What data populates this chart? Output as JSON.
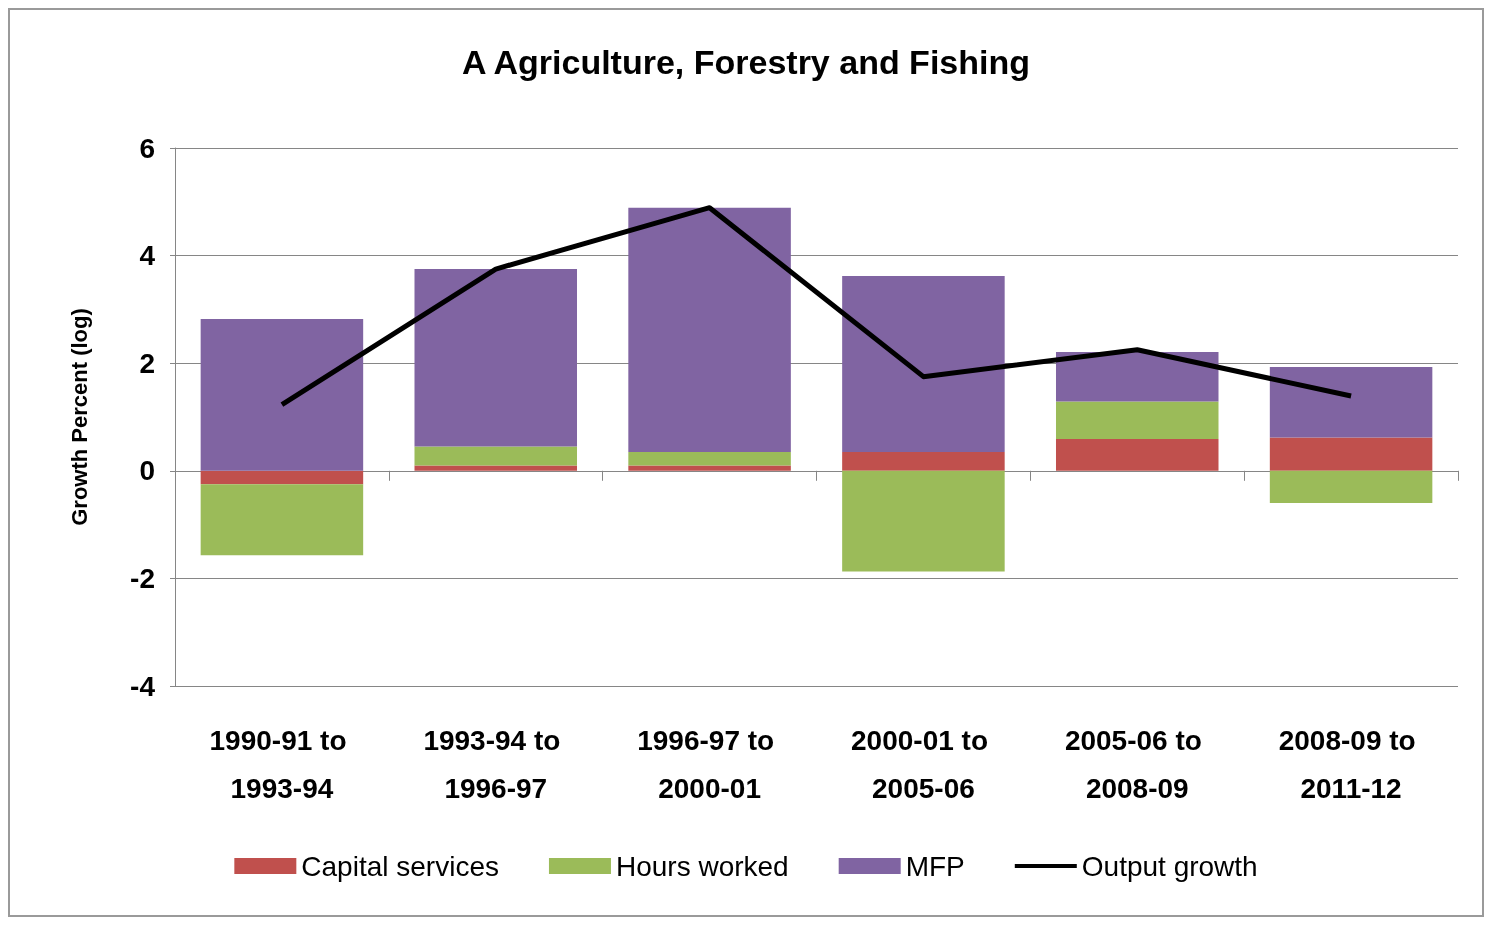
{
  "chart_data": {
    "type": "bar",
    "title": "A Agriculture, Forestry and Fishing",
    "ylabel": "Growth Percent (log)",
    "categories": [
      "1990-91 to 1993-94",
      "1993-94 to 1996-97",
      "1996-97 to 2000-01",
      "2000-01 to 2005-06",
      "2005-06 to 2008-09",
      "2008-09 to 2011-12"
    ],
    "stacked": true,
    "series": [
      {
        "name": "Capital services",
        "color": "#c0504d",
        "values": [
          -0.25,
          0.1,
          0.1,
          0.35,
          0.59,
          0.62
        ]
      },
      {
        "name": "Hours worked",
        "color": "#9bbb59",
        "values": [
          -1.32,
          0.35,
          0.25,
          -1.87,
          0.7,
          -0.6
        ]
      },
      {
        "name": "MFP",
        "color": "#8064a2",
        "values": [
          2.82,
          3.3,
          4.54,
          3.27,
          0.92,
          1.31
        ]
      },
      {
        "name": "Output growth",
        "type": "line",
        "color": "#000000",
        "values": [
          1.23,
          3.75,
          4.89,
          1.75,
          2.25,
          1.39
        ]
      }
    ],
    "ylim": [
      -4,
      6
    ],
    "yticks": [
      -4,
      -2,
      0,
      2,
      4,
      6
    ],
    "grid": "y",
    "legend": "bottom",
    "marker": "none"
  }
}
